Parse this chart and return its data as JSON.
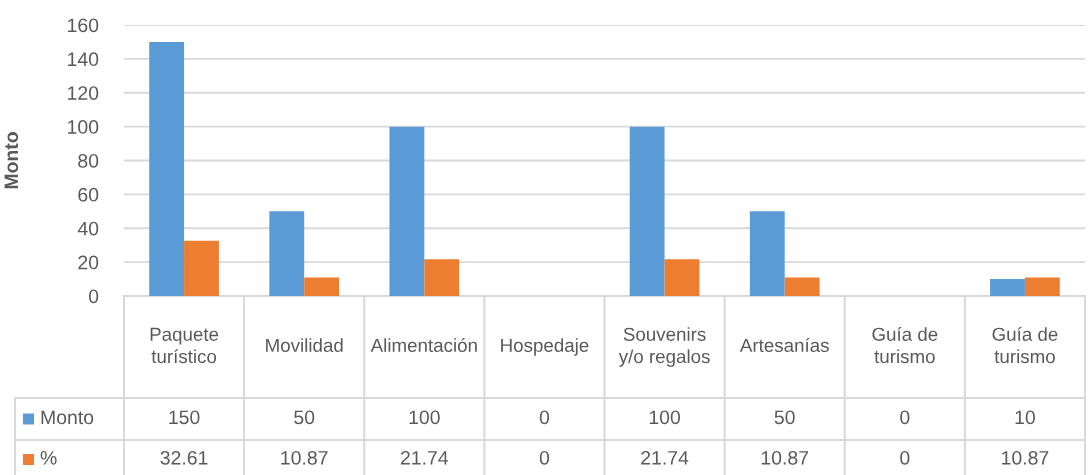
{
  "chart_data": {
    "type": "bar",
    "ylabel": "Monto",
    "categories": [
      "Paquete turístico",
      "Movilidad",
      "Alimentación",
      "Hospedaje",
      "Souvenirs y/o regalos",
      "Artesanías",
      "Guía de turismo",
      "Guía de turismo"
    ],
    "series": [
      {
        "name": "Monto",
        "color": "#5b9bd5",
        "values": [
          150,
          50,
          100,
          0,
          100,
          50,
          0,
          10
        ]
      },
      {
        "name": "%",
        "color": "#ed7d31",
        "values": [
          32.61,
          10.87,
          21.74,
          0,
          21.74,
          10.87,
          0,
          10.87
        ]
      }
    ],
    "ylim": [
      0,
      160
    ],
    "yticks": [
      0,
      20,
      40,
      60,
      80,
      100,
      120,
      140,
      160
    ],
    "grid": "y",
    "data_labels": true,
    "legend": "bottom left"
  }
}
